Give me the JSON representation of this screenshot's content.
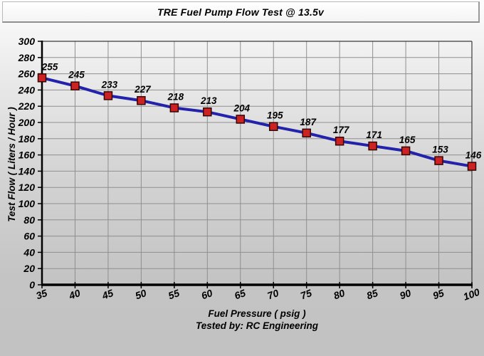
{
  "window": {
    "title": "TRE Fuel Pump Flow Test @ 13.5v"
  },
  "chart_data": {
    "type": "line",
    "title": "TRE Fuel Pump Flow Test @ 13.5v",
    "x": [
      35,
      40,
      45,
      50,
      55,
      60,
      65,
      70,
      75,
      80,
      85,
      90,
      95,
      100
    ],
    "values": [
      255,
      245,
      233,
      227,
      218,
      213,
      204,
      195,
      187,
      177,
      171,
      165,
      153,
      146
    ],
    "data_labels": [
      255,
      245,
      233,
      227,
      218,
      213,
      204,
      195,
      187,
      177,
      171,
      165,
      153,
      146
    ],
    "xlabel": "Fuel Pressure ( psig )",
    "ylabel": "Test Flow ( Liters / Hour )",
    "footer": "Tested by: RC Engineering",
    "xlim": [
      35,
      100
    ],
    "ylim": [
      0,
      300
    ],
    "x_tick_step": 5,
    "y_tick_step": 20,
    "x_ticks": [
      35,
      40,
      45,
      50,
      55,
      60,
      65,
      70,
      75,
      80,
      85,
      90,
      95,
      100
    ],
    "y_ticks": [
      0,
      20,
      40,
      60,
      80,
      100,
      120,
      140,
      160,
      180,
      200,
      220,
      240,
      260,
      280,
      300
    ],
    "grid": true,
    "legend": "none",
    "colors": {
      "line": "#2222aa",
      "marker_fill": "#cc2222",
      "marker_border": "#330505",
      "grid": "#8f8f8f",
      "axis": "#000000",
      "label_text": "#000000"
    }
  }
}
